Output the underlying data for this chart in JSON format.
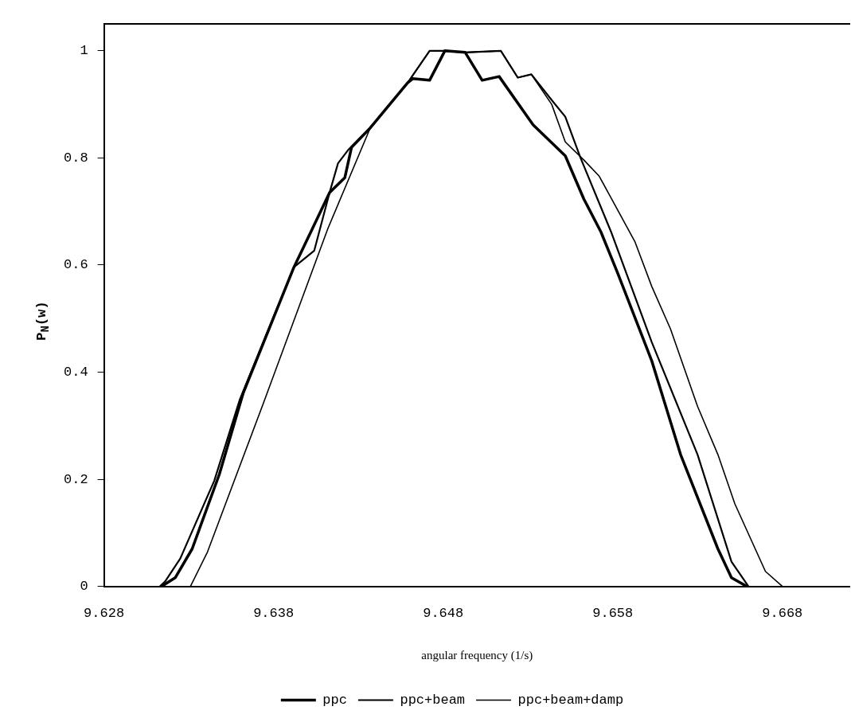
{
  "chart_data": {
    "type": "line",
    "xlabel": "angular frequency (1/s)",
    "ylabel": "P$_{N}$(w)",
    "xlim": [
      9.628,
      9.672
    ],
    "xticks": [
      9.628,
      9.638,
      9.648,
      9.658,
      9.668
    ],
    "ylim": [
      0,
      1.05
    ],
    "yticks": [
      0,
      0.2,
      0.4,
      0.6,
      0.8,
      1
    ],
    "grid": false,
    "legend": "bottom",
    "marker": "none",
    "line_style": "solid",
    "series": [
      {
        "name": "ppc",
        "color": "#000000",
        "x": [
          9.6314,
          9.6322,
          9.6332,
          9.6348,
          9.6362,
          9.6392,
          9.6402,
          9.6413,
          9.6422,
          9.6426,
          9.6437,
          9.6459,
          9.6462,
          9.6472,
          9.6481,
          9.6493,
          9.6503,
          9.6513,
          9.6533,
          9.6552,
          9.6563,
          9.6573,
          9.6583,
          9.6603,
          9.662,
          9.6642,
          9.665,
          9.6659
        ],
        "values": [
          0,
          0.016,
          0.07,
          0.209,
          0.36,
          0.596,
          0.662,
          0.735,
          0.763,
          0.82,
          0.856,
          0.94,
          0.948,
          0.945,
          1.0,
          0.997,
          0.945,
          0.952,
          0.862,
          0.804,
          0.723,
          0.662,
          0.584,
          0.421,
          0.246,
          0.07,
          0.016,
          0
        ]
      },
      {
        "name": "ppc+beam",
        "color": "#000000",
        "x": [
          9.6313,
          9.6316,
          9.6325,
          9.6345,
          9.636,
          9.6392,
          9.6404,
          9.6413,
          9.6418,
          9.6424,
          9.6437,
          9.6459,
          9.6472,
          9.6481,
          9.6493,
          9.6514,
          9.6524,
          9.6532,
          9.6544,
          9.6552,
          9.6561,
          9.6579,
          9.6603,
          9.663,
          9.665,
          9.666
        ],
        "values": [
          0,
          0.009,
          0.052,
          0.197,
          0.348,
          0.596,
          0.627,
          0.735,
          0.79,
          0.815,
          0.856,
          0.94,
          1.0,
          1.0,
          0.997,
          1.0,
          0.95,
          0.956,
          0.908,
          0.877,
          0.8,
          0.662,
          0.456,
          0.246,
          0.046,
          0
        ]
      },
      {
        "name": "ppc+beam+damp",
        "color": "#000000",
        "x": [
          9.6331,
          9.6341,
          9.6374,
          9.6412,
          9.6437,
          9.6459,
          9.6472,
          9.6481,
          9.6493,
          9.6514,
          9.6524,
          9.6532,
          9.6544,
          9.6552,
          9.6563,
          9.6572,
          9.6593,
          9.6603,
          9.6614,
          9.663,
          9.6642,
          9.6652,
          9.667,
          9.668
        ],
        "values": [
          0,
          0.064,
          0.342,
          0.668,
          0.856,
          0.94,
          1.0,
          1.0,
          0.997,
          1.0,
          0.95,
          0.956,
          0.9,
          0.83,
          0.796,
          0.766,
          0.644,
          0.56,
          0.481,
          0.336,
          0.246,
          0.154,
          0.028,
          0
        ]
      }
    ]
  }
}
